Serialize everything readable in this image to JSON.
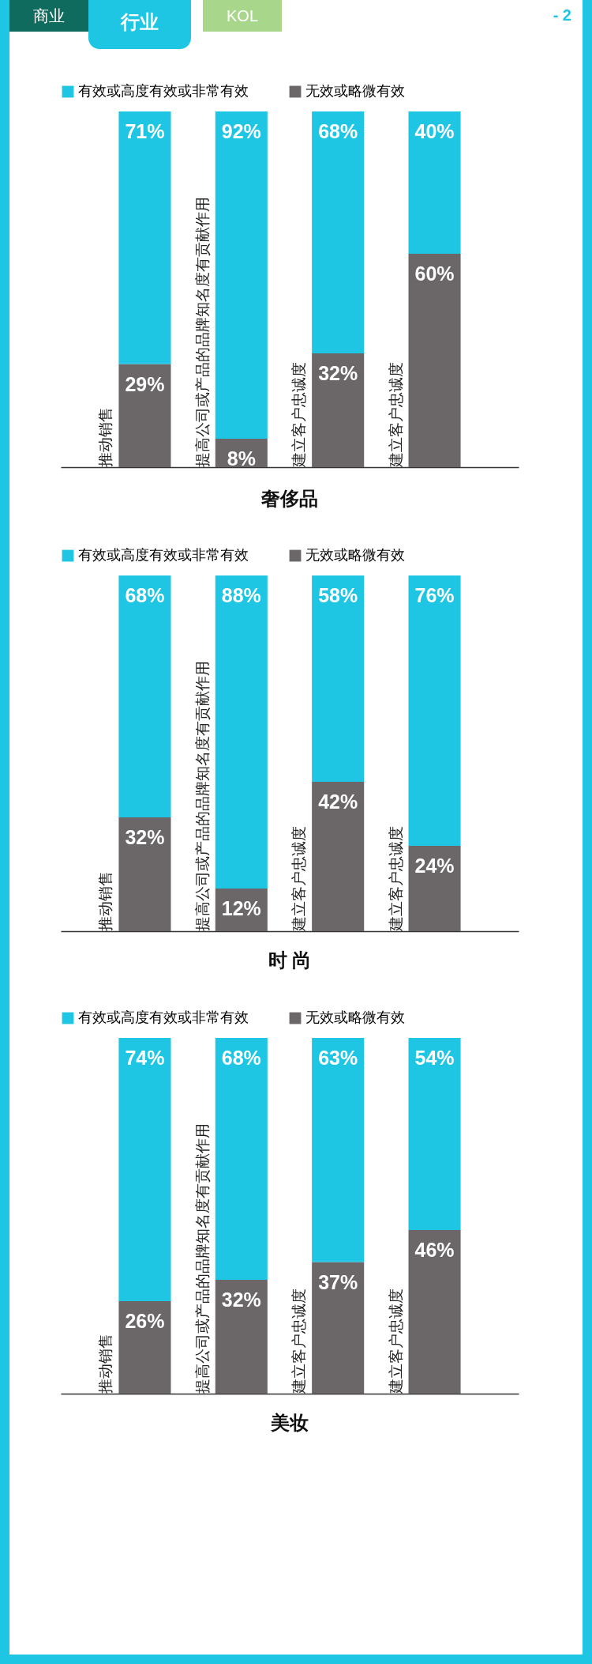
{
  "chart_data": [
    {
      "type": "bar",
      "title": "奢侈品",
      "annotations": [
        "商业",
        "行业",
        "KOL",
        "- 2"
      ],
      "stacked": true,
      "legend": "top",
      "categories": [
        "推动销售",
        "提高公司或产品的品牌知名度有贡献作用",
        "建立客户忠诚度",
        "建立客户忠诚度"
      ],
      "series": [
        {
          "name": "无效或略微有效",
          "color": "#6b6769",
          "values": [
            29,
            8,
            32,
            60
          ],
          "value_labels": [
            "29%",
            "8%",
            "32%",
            "60%"
          ]
        },
        {
          "name": "有效或高度有效或非常有效",
          "color": "#1ec6e3",
          "values": [
            71,
            92,
            68,
            40
          ],
          "value_labels": [
            "71%",
            "92%",
            "68%",
            "40%"
          ]
        }
      ]
    },
    {
      "type": "bar",
      "title": "时 尚",
      "stacked": true,
      "legend": "top",
      "categories": [
        "推动销售",
        "提高公司或产品的品牌知名度有贡献作用",
        "建立客户忠诚度",
        "建立客户忠诚度"
      ],
      "series": [
        {
          "name": "无效或略微有效",
          "color": "#6b6769",
          "values": [
            32,
            12,
            42,
            24
          ],
          "value_labels": [
            "32%",
            "12%",
            "42%",
            "24%"
          ]
        },
        {
          "name": "有效或高度有效或非常有效",
          "color": "#1ec6e3",
          "values": [
            68,
            88,
            58,
            76
          ],
          "value_labels": [
            "68%",
            "88%",
            "58%",
            "76%"
          ]
        }
      ]
    },
    {
      "type": "bar",
      "title": "美妆",
      "stacked": true,
      "legend": "top",
      "categories": [
        "推动销售",
        "提高公司或产品的品牌知名度有贡献作用",
        "建立客户忠诚度",
        "建立客户忠诚度"
      ],
      "series": [
        {
          "name": "无效或略微有效",
          "color": "#6b6769",
          "values": [
            26,
            32,
            37,
            46
          ],
          "value_labels": [
            "26%",
            "32%",
            "37%",
            "46%"
          ]
        },
        {
          "name": "有效或高度有效或非常有效",
          "color": "#1ec6e3",
          "values": [
            74,
            68,
            63,
            54
          ],
          "value_labels": [
            "74%",
            "68%",
            "63%",
            "54%"
          ]
        }
      ]
    }
  ]
}
